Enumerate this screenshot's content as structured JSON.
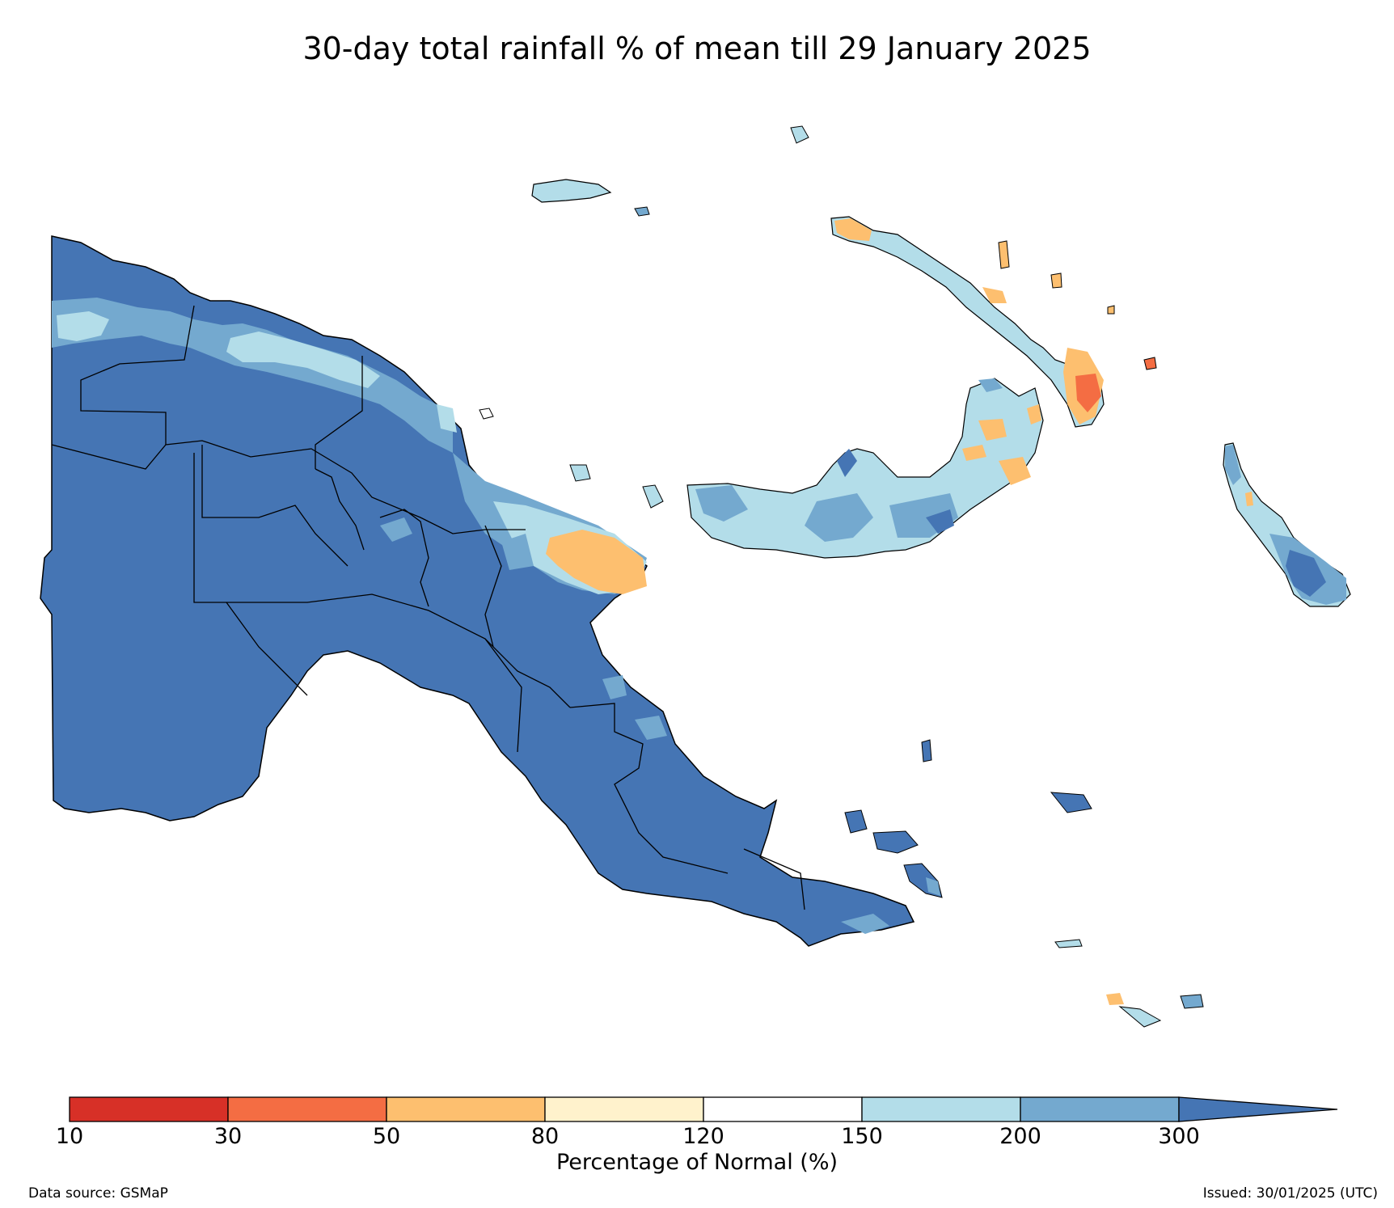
{
  "title": "30-day total rainfall % of mean till 29 January 2025",
  "colorbar": {
    "label": "Percentage of Normal (%)",
    "ticks": [
      "10",
      "30",
      "50",
      "80",
      "120",
      "150",
      "200",
      "300"
    ],
    "bins": [
      {
        "from": 10,
        "to": 30,
        "color": "#d73027"
      },
      {
        "from": 30,
        "to": 50,
        "color": "#f46d43"
      },
      {
        "from": 50,
        "to": 80,
        "color": "#fdbf6f"
      },
      {
        "from": 80,
        "to": 120,
        "color": "#fff2cc"
      },
      {
        "from": 120,
        "to": 150,
        "color": "#ffffff"
      },
      {
        "from": 150,
        "to": 200,
        "color": "#b3dde9"
      },
      {
        "from": 200,
        "to": 300,
        "color": "#74a9cf"
      },
      {
        "from": 300,
        "to": null,
        "color": "#4575b4"
      }
    ],
    "extend": "max"
  },
  "footer": {
    "source": "Data source: GSMaP",
    "issued": "Issued: 30/01/2025 (UTC)"
  },
  "colors": {
    "very_wet": "#4575b4",
    "wet": "#74a9cf",
    "slightly_wet": "#b3dde9",
    "dry": "#fdbf6f",
    "very_dry": "#f46d43",
    "extreme_dry": "#d73027",
    "border": "#000000"
  }
}
